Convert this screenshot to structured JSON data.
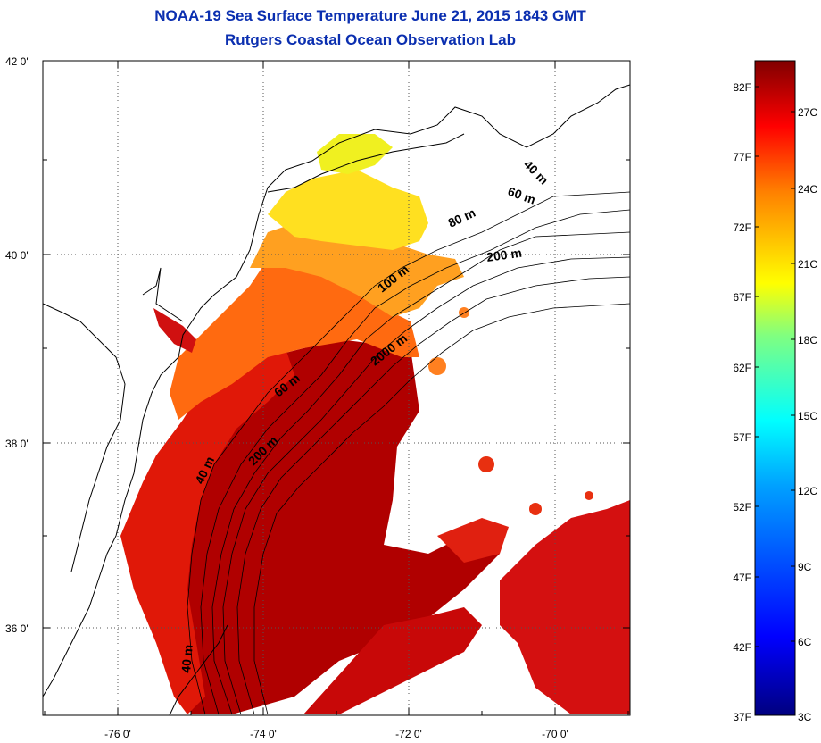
{
  "title": {
    "line1": "NOAA-19 Sea Surface Temperature June 21, 2015 1843 GMT",
    "line2": "Rutgers Coastal Ocean Observation Lab"
  },
  "map": {
    "lat_labels": [
      "42 0'",
      "40 0'",
      "38 0'",
      "36 0'"
    ],
    "lon_labels": [
      "-76 0'",
      "-74 0'",
      "-72 0'",
      "-70 0'"
    ],
    "depth_labels": [
      "40 m",
      "60 m",
      "80 m",
      "200 m",
      "100 m",
      "2000 m",
      "60 m",
      "200 m",
      "40 m",
      "40 m"
    ],
    "grid": "dotted"
  },
  "colorbar": {
    "f_labels": [
      "82F",
      "77F",
      "72F",
      "67F",
      "62F",
      "57F",
      "52F",
      "47F",
      "42F",
      "37F"
    ],
    "c_labels": [
      "27C",
      "24C",
      "21C",
      "18C",
      "15C",
      "12C",
      "9C",
      "6C",
      "3C"
    ],
    "colors": [
      "#00007f",
      "#0000ff",
      "#007fff",
      "#00ffff",
      "#7fff7f",
      "#ffff00",
      "#ff7f00",
      "#ff0000",
      "#7f0000"
    ]
  }
}
